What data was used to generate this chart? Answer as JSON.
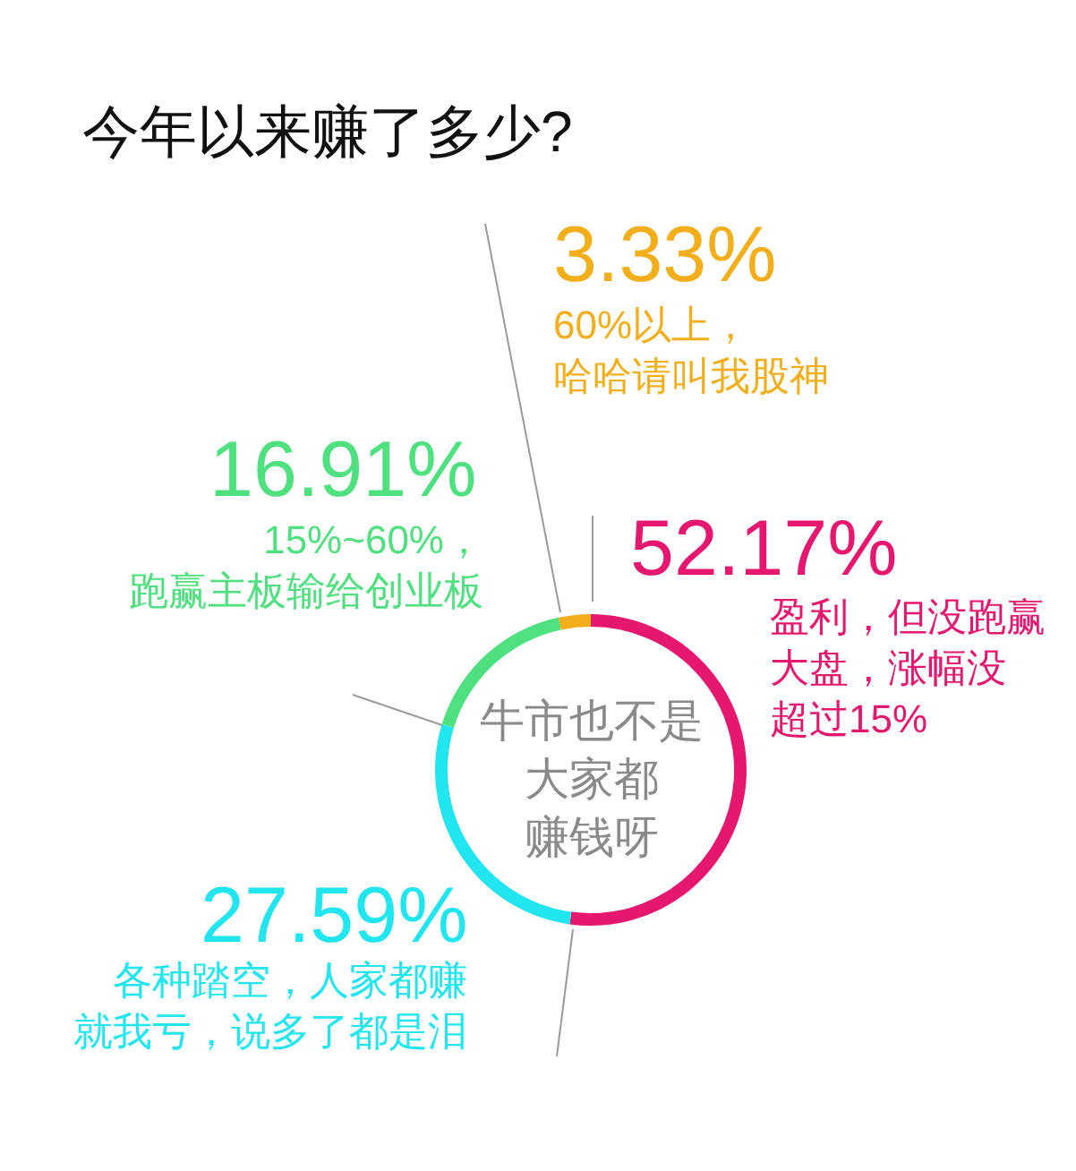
{
  "chart_data": {
    "type": "donut",
    "title": "今年以来赚了多少?",
    "categories": [
      "盈利，但没跑赢大盘，涨幅没超过15%",
      "各种踏空，人家都赚就我亏，说多了都是泪",
      "15%~60%，跑赢主板输给创业板",
      "60%以上，哈哈请叫我股神"
    ],
    "values": [
      52.17,
      27.59,
      16.91,
      3.33
    ],
    "colors": [
      "#e6176f",
      "#21e6ef",
      "#4fe07f",
      "#f3ae1c"
    ],
    "value_labels": [
      "52.17%",
      "27.59%",
      "16.91%",
      "3.33%"
    ],
    "annotations": [
      "牛市也不是大家都赚钱呀"
    ]
  }
}
